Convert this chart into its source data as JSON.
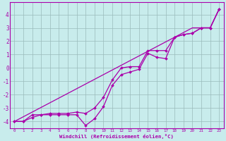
{
  "xlabel": "Windchill (Refroidissement éolien,°C)",
  "x": [
    0,
    1,
    2,
    3,
    4,
    5,
    6,
    7,
    8,
    9,
    10,
    11,
    12,
    13,
    14,
    15,
    16,
    17,
    18,
    19,
    20,
    21,
    22,
    23
  ],
  "line_straight": [
    -4.0,
    -3.65,
    -3.3,
    -2.95,
    -2.6,
    -2.25,
    -1.9,
    -1.55,
    -1.2,
    -0.85,
    -0.5,
    -0.15,
    0.2,
    0.55,
    0.9,
    1.25,
    1.6,
    1.95,
    2.3,
    2.65,
    3.0,
    3.0,
    3.0,
    4.4
  ],
  "line_wavy": [
    -4.0,
    -4.0,
    -3.7,
    -3.5,
    -3.5,
    -3.5,
    -3.5,
    -3.5,
    -4.3,
    -3.8,
    -2.9,
    -1.3,
    -0.5,
    -0.3,
    -0.1,
    1.1,
    0.8,
    0.7,
    2.3,
    2.5,
    2.6,
    3.0,
    3.0,
    4.4
  ],
  "line_mid": [
    -4.0,
    -4.0,
    -3.5,
    -3.5,
    -3.4,
    -3.4,
    -3.4,
    -3.3,
    -3.4,
    -3.0,
    -2.2,
    -0.9,
    0.0,
    0.1,
    0.1,
    1.3,
    1.3,
    1.3,
    2.3,
    2.5,
    2.6,
    3.0,
    3.0,
    4.4
  ],
  "line_color": "#aa00aa",
  "bg_color": "#c8ecec",
  "grid_color": "#99bbbb",
  "ylim": [
    -4.5,
    4.9
  ],
  "xlim": [
    -0.5,
    23.5
  ],
  "yticks": [
    -4,
    -3,
    -2,
    -1,
    0,
    1,
    2,
    3,
    4
  ],
  "xticks": [
    0,
    1,
    2,
    3,
    4,
    5,
    6,
    7,
    8,
    9,
    10,
    11,
    12,
    13,
    14,
    15,
    16,
    17,
    18,
    19,
    20,
    21,
    22,
    23
  ]
}
